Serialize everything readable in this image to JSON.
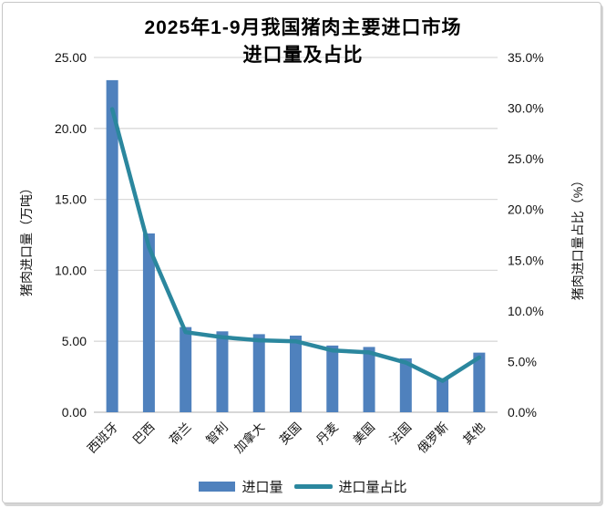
{
  "chart_data": {
    "type": "bar+line combo",
    "title": "2025年1-9月我国猪肉主要进口市场进口量及占比",
    "title_lines": [
      "2025年1-9月我国猪肉主要进口市场",
      "进口量及占比"
    ],
    "categories": [
      "西班牙",
      "巴西",
      "荷兰",
      "智利",
      "加拿大",
      "英国",
      "丹麦",
      "美国",
      "法国",
      "俄罗斯",
      "其他"
    ],
    "series": [
      {
        "name": "进口量",
        "type": "bar",
        "axis": "left",
        "unit": "万吨",
        "color": "#4F81BD",
        "values": [
          23.4,
          12.6,
          6.0,
          5.7,
          5.5,
          5.4,
          4.7,
          4.6,
          3.8,
          2.4,
          4.2
        ]
      },
      {
        "name": "进口量占比",
        "type": "line",
        "axis": "right",
        "unit": "%",
        "color": "#2B879E",
        "values": [
          29.9,
          16.3,
          7.9,
          7.4,
          7.1,
          7.0,
          6.1,
          5.9,
          4.9,
          3.1,
          5.4
        ]
      }
    ],
    "left_axis": {
      "title": "猪肉进口量（万吨）",
      "min": 0,
      "max": 25,
      "step": 5,
      "tick_labels": [
        "0.00",
        "5.00",
        "10.00",
        "15.00",
        "20.00",
        "25.00"
      ]
    },
    "right_axis": {
      "title": "猪肉进口量占比（%）",
      "min": 0,
      "max": 35,
      "step": 5,
      "tick_labels": [
        "0.0%",
        "5.0%",
        "10.0%",
        "15.0%",
        "20.0%",
        "25.0%",
        "30.0%",
        "35.0%"
      ]
    },
    "grid": "horizontal",
    "legend": {
      "position": "bottom",
      "items": [
        "进口量",
        "进口量占比"
      ]
    },
    "colors": {
      "gridline": "#D9D9D9",
      "axis_line": "#BFBFBF",
      "text": "#141414",
      "title": "#000000"
    }
  }
}
